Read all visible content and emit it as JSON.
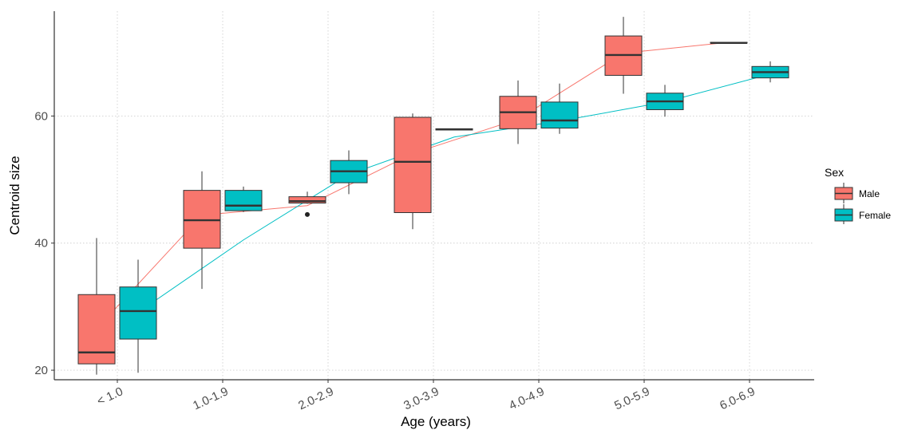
{
  "chart_data": {
    "type": "boxplot",
    "xlabel": "Age (years)",
    "ylabel": "Centroid size",
    "categories": [
      "< 1.0",
      "1.0-1.9",
      "2.0-2.9",
      "3.0-3.9",
      "4.0-4.9",
      "5.0-5.9",
      "6.0-6.9"
    ],
    "y_ticks": [
      20,
      40,
      60
    ],
    "ylim": [
      18.5,
      76.5
    ],
    "grid": true,
    "legend": {
      "title": "Sex",
      "position": "right"
    },
    "series": [
      {
        "name": "Male",
        "color": "#F8766D",
        "boxes": [
          {
            "category": "< 1.0",
            "min": 19.3,
            "q1": 21.0,
            "median": 22.8,
            "q3": 31.9,
            "max": 40.8,
            "outliers": []
          },
          {
            "category": "1.0-1.9",
            "min": 32.8,
            "q1": 39.2,
            "median": 43.6,
            "q3": 48.3,
            "max": 51.3,
            "outliers": []
          },
          {
            "category": "2.0-2.9",
            "min": 46.2,
            "q1": 46.3,
            "median": 46.6,
            "q3": 47.3,
            "max": 48.1,
            "outliers": [
              44.5
            ]
          },
          {
            "category": "3.0-3.9",
            "min": 42.2,
            "q1": 44.8,
            "median": 52.8,
            "q3": 59.8,
            "max": 60.4,
            "outliers": []
          },
          {
            "category": "4.0-4.9",
            "min": 55.6,
            "q1": 58.0,
            "median": 60.6,
            "q3": 63.1,
            "max": 65.6,
            "outliers": []
          },
          {
            "category": "5.0-5.9",
            "min": 63.5,
            "q1": 66.4,
            "median": 69.6,
            "q3": 72.6,
            "max": 75.6,
            "outliers": []
          },
          {
            "category": "6.0-6.9",
            "min": 71.5,
            "q1": 71.5,
            "median": 71.5,
            "q3": 71.6,
            "max": 71.6,
            "outliers": []
          }
        ],
        "trend": [
          26.5,
          44.4,
          45.9,
          54.1,
          59.5,
          69.9,
          71.6
        ]
      },
      {
        "name": "Female",
        "color": "#00BFC4",
        "boxes": [
          {
            "category": "< 1.0",
            "min": 19.6,
            "q1": 24.9,
            "median": 29.3,
            "q3": 33.1,
            "max": 37.4,
            "outliers": []
          },
          {
            "category": "1.0-1.9",
            "min": 44.9,
            "q1": 45.1,
            "median": 45.9,
            "q3": 48.3,
            "max": 48.9,
            "outliers": []
          },
          {
            "category": "2.0-2.9",
            "min": 47.7,
            "q1": 49.5,
            "median": 51.3,
            "q3": 53.0,
            "max": 54.6,
            "outliers": []
          },
          {
            "category": "3.0-3.9",
            "min": 57.8,
            "q1": 57.8,
            "median": 57.9,
            "q3": 58.0,
            "max": 58.0,
            "outliers": []
          },
          {
            "category": "4.0-4.9",
            "min": 57.2,
            "q1": 58.1,
            "median": 59.3,
            "q3": 62.2,
            "max": 65.1,
            "outliers": []
          },
          {
            "category": "5.0-5.9",
            "min": 59.9,
            "q1": 61.0,
            "median": 62.3,
            "q3": 63.6,
            "max": 64.9,
            "outliers": []
          },
          {
            "category": "6.0-6.9",
            "min": 65.3,
            "q1": 66.0,
            "median": 66.9,
            "q3": 67.8,
            "max": 68.6,
            "outliers": []
          }
        ],
        "trend": [
          29.1,
          40.5,
          50.8,
          56.7,
          59.2,
          62.2,
          66.6
        ]
      }
    ]
  }
}
